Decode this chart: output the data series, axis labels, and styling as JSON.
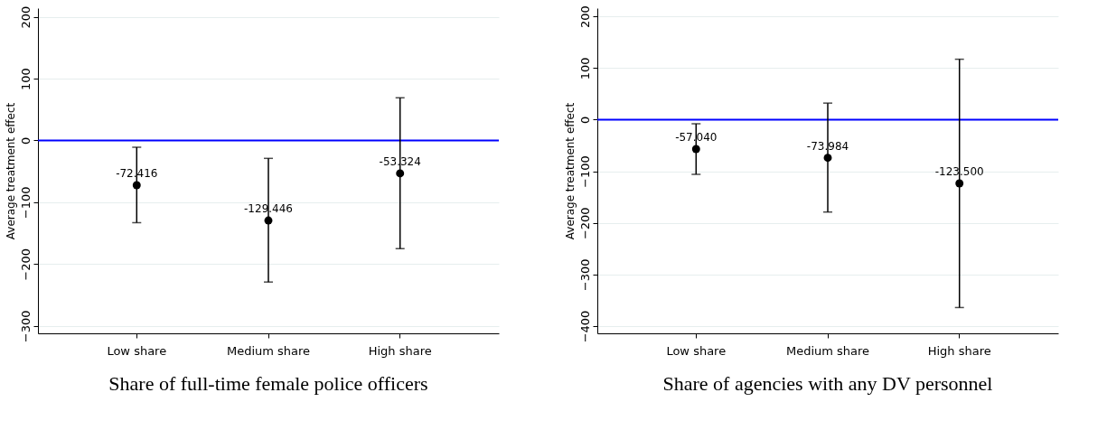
{
  "chart_data": [
    {
      "type": "scatter",
      "title": "Share of full-time female police officers",
      "ylabel": "Average treatment effect",
      "categories": [
        "Low share",
        "Medium share",
        "High share"
      ],
      "values": [
        -72.416,
        -129.446,
        -53.324
      ],
      "value_labels": [
        "-72.416",
        "-129.446",
        "-53.324"
      ],
      "errors": [
        [
          -133,
          -11
        ],
        [
          -229,
          -29
        ],
        [
          -175,
          69
        ]
      ],
      "color": "#000000",
      "marker": "circle",
      "ylim": [
        -312,
        214
      ],
      "yticks": [
        -300,
        -200,
        -100,
        0,
        100,
        200
      ],
      "grid": "y",
      "ref_lines": [
        {
          "axis": "y",
          "value": 0,
          "color": "#0000ff"
        }
      ]
    },
    {
      "type": "scatter",
      "title": "Share of agencies with any DV personnel",
      "ylabel": "Average treatment effect",
      "categories": [
        "Low share",
        "Medium share",
        "High share"
      ],
      "values": [
        -57.04,
        -73.984,
        -123.5
      ],
      "value_labels": [
        "-57.040",
        "-73.984",
        "-123.500"
      ],
      "errors": [
        [
          -106,
          -8
        ],
        [
          -179,
          32
        ],
        [
          -364,
          117
        ]
      ],
      "color": "#000000",
      "marker": "circle",
      "ylim": [
        -414,
        216
      ],
      "yticks": [
        -400,
        -300,
        -200,
        -100,
        0,
        100,
        200
      ],
      "grid": "y",
      "ref_lines": [
        {
          "axis": "y",
          "value": 0,
          "color": "#0000ff"
        }
      ]
    }
  ]
}
